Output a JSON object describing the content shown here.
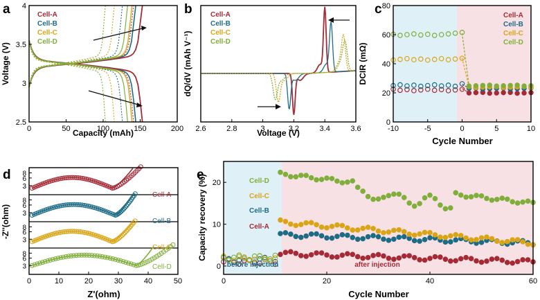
{
  "colors": {
    "A": "#a52a36",
    "B": "#1d6b85",
    "C": "#d9a516",
    "D": "#7fae3a",
    "before_fill": "#dff0f7",
    "after_fill": "#f8e1e4"
  },
  "legend_labels": [
    "Cell-A",
    "Cell-B",
    "Cell-C",
    "Cell-D"
  ],
  "chart_data": [
    {
      "panel": "a",
      "type": "line",
      "xlabel": "Capacity (mAh)",
      "ylabel": "Voltage (V)",
      "xlim": [
        0,
        200
      ],
      "ylim": [
        2.5,
        4.0
      ],
      "xticks": [
        0,
        50,
        100,
        150,
        200
      ],
      "yticks": [
        2.5,
        3.0,
        3.5,
        4.0
      ],
      "series": [
        {
          "name": "Cell-A",
          "capacity": 153
        },
        {
          "name": "Cell-B",
          "capacity": 144
        },
        {
          "name": "Cell-C",
          "capacity": 139
        },
        {
          "name": "Cell-D",
          "capacity": 133
        }
      ],
      "aging_arrows": 2
    },
    {
      "panel": "b",
      "type": "line",
      "xlabel": "Voltage (V)",
      "ylabel": "dQ/dV (mAh V⁻¹)",
      "xlim": [
        2.6,
        3.6
      ],
      "xticks": [
        2.6,
        2.8,
        3.0,
        3.2,
        3.4,
        3.6
      ],
      "series": [
        {
          "name": "Cell-A",
          "charge_peak_v": 3.4,
          "discharge_peak_v": 3.2
        },
        {
          "name": "Cell-B",
          "charge_peak_v": 3.44,
          "discharge_peak_v": 3.17
        },
        {
          "name": "Cell-C",
          "charge_peak_v": 3.52,
          "discharge_peak_v": 3.1
        },
        {
          "name": "Cell-D",
          "charge_peak_v": 3.53,
          "discharge_peak_v": 3.08
        }
      ]
    },
    {
      "panel": "c",
      "type": "scatter",
      "xlabel": "Cycle Number",
      "ylabel": "DCIR (mΩ)",
      "xlim": [
        -10,
        10
      ],
      "ylim": [
        0,
        80
      ],
      "xticks": [
        -10,
        -5,
        0,
        5,
        10
      ],
      "yticks": [
        0,
        20,
        40,
        60,
        80
      ],
      "series": [
        {
          "name": "Cell-A",
          "before": 23,
          "after": 20
        },
        {
          "name": "Cell-B",
          "before": 26,
          "after": 23
        },
        {
          "name": "Cell-C",
          "before": 44,
          "after": 24
        },
        {
          "name": "Cell-D",
          "before": 61,
          "after": 25
        }
      ]
    },
    {
      "panel": "d",
      "type": "scatter",
      "xlabel": "Z'(ohm)",
      "ylabel": "-Z''(ohm)",
      "xlim": [
        0,
        50
      ],
      "xticks": [
        0,
        10,
        20,
        30,
        40,
        50
      ],
      "sub_yticks": [
        3,
        6,
        8
      ],
      "series": [
        {
          "name": "Cell-A",
          "arc_top": 18,
          "arc_end": 28,
          "tail_end": 38,
          "fit_end": 35
        },
        {
          "name": "Cell-B",
          "arc_top": 20,
          "arc_end": 29,
          "tail_end": 36,
          "fit_end": 35
        },
        {
          "name": "Cell-C",
          "arc_top": 18,
          "arc_end": 28,
          "tail_end": 36,
          "fit_end": 35
        },
        {
          "name": "Cell-D",
          "arc_top": 23,
          "arc_end": 36,
          "tail_end": 49,
          "fit_end": 42
        }
      ]
    },
    {
      "panel": "e",
      "type": "scatter",
      "xlabel": "Cycle Number",
      "ylabel": "Capacity recovery (%)",
      "xlim": [
        0,
        60
      ],
      "ylim": [
        -2,
        25
      ],
      "xticks": [
        0,
        20,
        40,
        60
      ],
      "yticks": [
        0,
        10,
        20
      ],
      "region_labels": [
        "before injection",
        "after injection"
      ],
      "injection_cycle": 11,
      "series": [
        {
          "name": "Cell-A",
          "before": 1.0,
          "after_start": 3.0,
          "after_end": 1.0
        },
        {
          "name": "Cell-B",
          "before": 1.5,
          "after_start": 7.5,
          "after_end": 5.5
        },
        {
          "name": "Cell-C",
          "before": 1.8,
          "after_start": 10.5,
          "after_end": 5.5
        },
        {
          "name": "Cell-D",
          "before": 2.0,
          "after_start": 22.0,
          "after_end": 15.0
        }
      ]
    }
  ]
}
